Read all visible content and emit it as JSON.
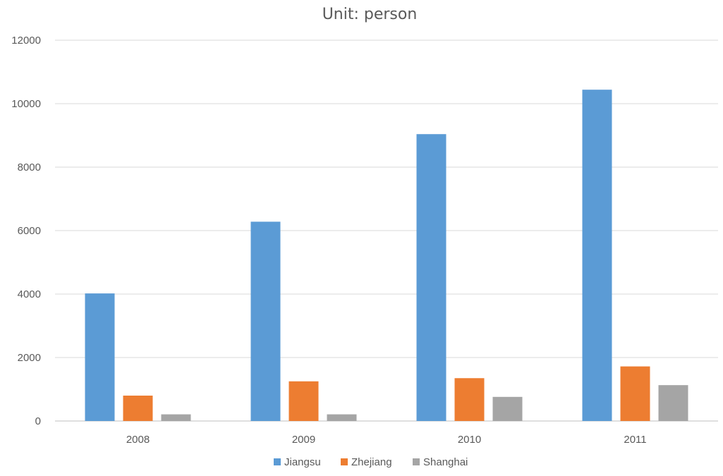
{
  "chart_data": {
    "type": "bar",
    "title": "Unit: person",
    "xlabel": "",
    "ylabel": "",
    "categories": [
      "2008",
      "2009",
      "2010",
      "2011"
    ],
    "series": [
      {
        "name": "Jiangsu",
        "values": [
          4020,
          6280,
          9040,
          10440
        ],
        "color": "#5b9bd5"
      },
      {
        "name": "Zhejiang",
        "values": [
          800,
          1250,
          1350,
          1720
        ],
        "color": "#ed7d31"
      },
      {
        "name": "Shanghai",
        "values": [
          210,
          210,
          760,
          1130
        ],
        "color": "#a5a5a5"
      }
    ],
    "ylim": [
      0,
      12000
    ],
    "yticks": [
      "0",
      "2000",
      "4000",
      "6000",
      "8000",
      "10000",
      "12000"
    ],
    "grid": true,
    "legend_position": "bottom"
  }
}
